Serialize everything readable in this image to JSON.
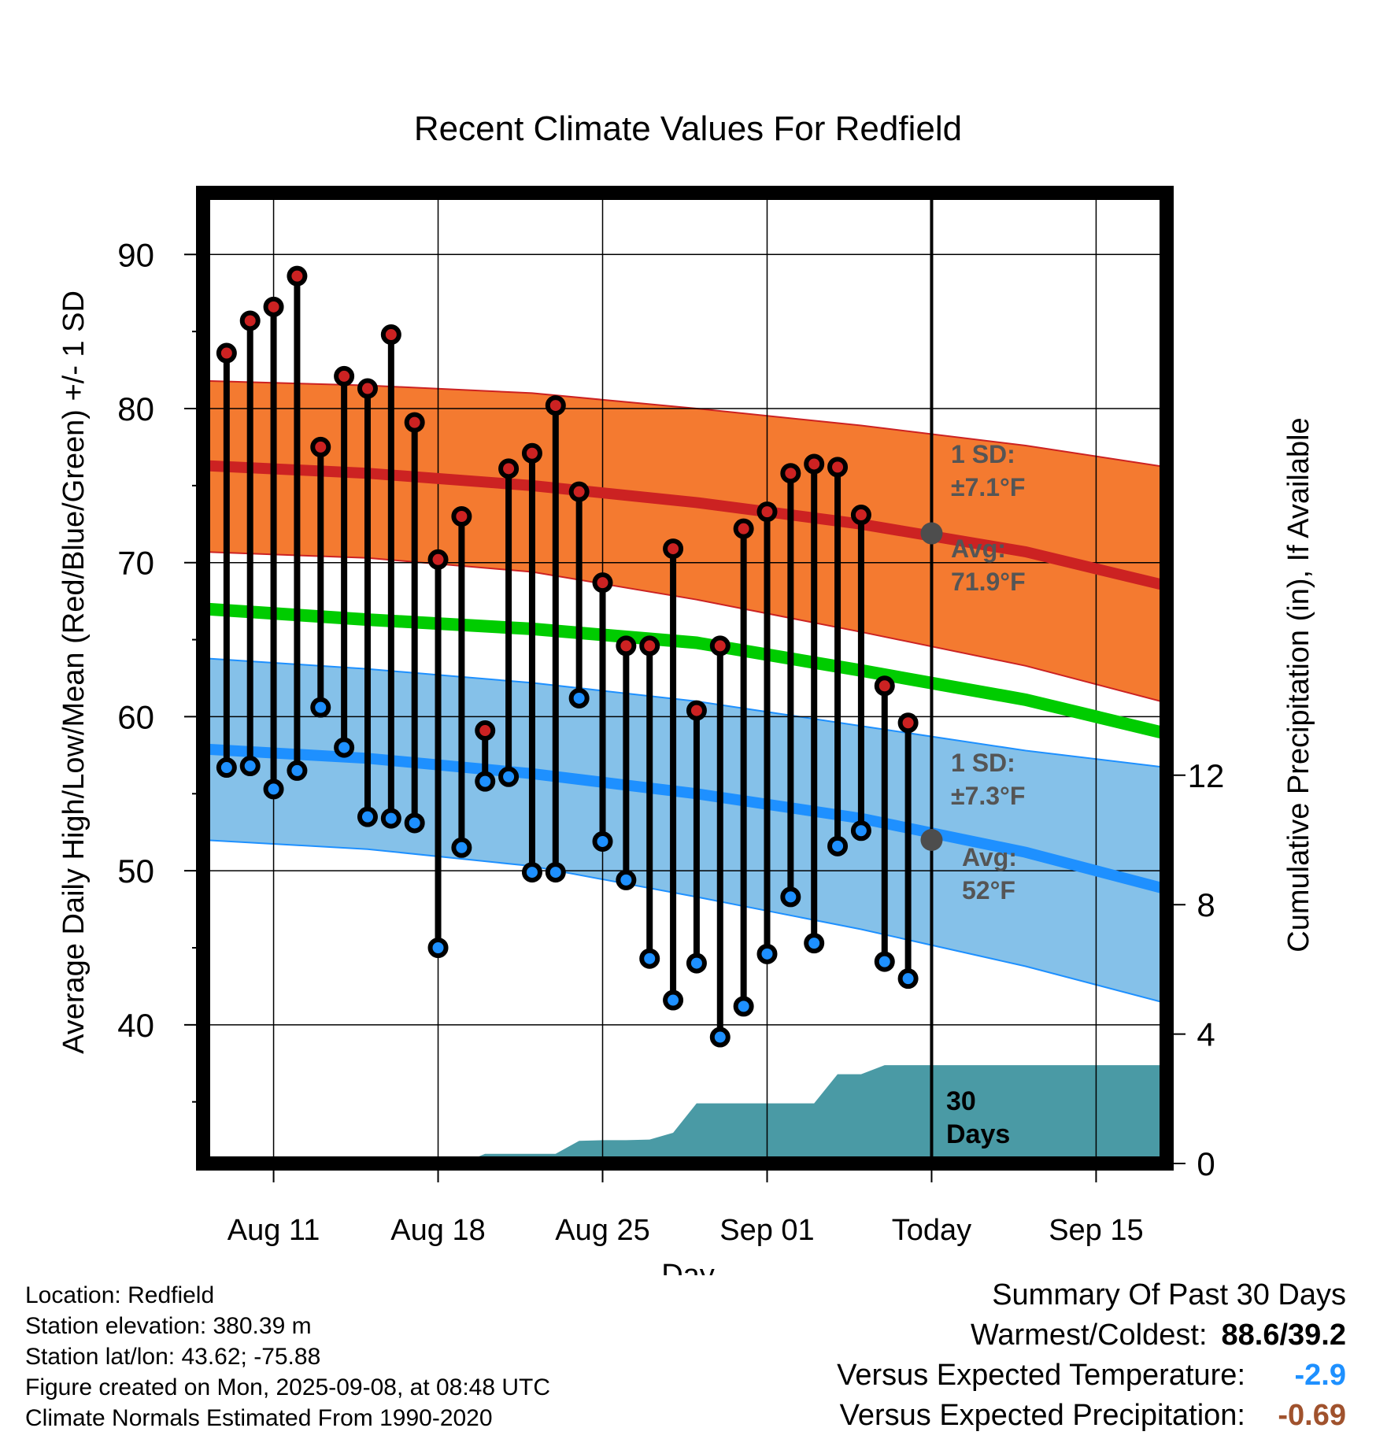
{
  "chart_data": {
    "type": "line",
    "title": "Recent Climate Values For Redfield",
    "xlabel": "Day",
    "ylabel": "Average Daily High/Low/Mean (Red/Blue/Green) +/- 1 SD",
    "y2label": "Cumulative Precipitation (in), If Available",
    "x_range": [
      "2025-08-08",
      "2025-09-18"
    ],
    "ylim": [
      31,
      94
    ],
    "y2lim": [
      0,
      30
    ],
    "yticks": [
      40,
      50,
      60,
      70,
      80,
      90
    ],
    "y2ticks": [
      0,
      4,
      8,
      12
    ],
    "grid": true,
    "xticks": [
      {
        "date": "2025-08-11",
        "label": "Aug 11"
      },
      {
        "date": "2025-08-18",
        "label": "Aug 18"
      },
      {
        "date": "2025-08-25",
        "label": "Aug 25"
      },
      {
        "date": "2025-09-01",
        "label": "Sep 01"
      },
      {
        "date": "2025-09-08",
        "label": "Today"
      },
      {
        "date": "2025-09-15",
        "label": "Sep 15"
      }
    ],
    "today": "2025-09-08",
    "window_label": [
      "30",
      "Days"
    ],
    "observations": {
      "dates": [
        "2025-08-09",
        "2025-08-10",
        "2025-08-11",
        "2025-08-12",
        "2025-08-13",
        "2025-08-14",
        "2025-08-15",
        "2025-08-16",
        "2025-08-17",
        "2025-08-18",
        "2025-08-19",
        "2025-08-20",
        "2025-08-21",
        "2025-08-22",
        "2025-08-23",
        "2025-08-24",
        "2025-08-25",
        "2025-08-26",
        "2025-08-27",
        "2025-08-28",
        "2025-08-29",
        "2025-08-30",
        "2025-08-31",
        "2025-09-01",
        "2025-09-02",
        "2025-09-03",
        "2025-09-04",
        "2025-09-05",
        "2025-09-06",
        "2025-09-07"
      ],
      "high": [
        83.6,
        85.7,
        86.6,
        88.6,
        77.5,
        82.1,
        81.3,
        84.8,
        79.1,
        70.2,
        73,
        59.1,
        76.1,
        77.1,
        80.2,
        74.6,
        68.7,
        64.6,
        64.6,
        70.9,
        60.4,
        64.6,
        72.2,
        73.3,
        75.8,
        76.4,
        76.2,
        73.1,
        62,
        59.6
      ],
      "low": [
        56.7,
        56.8,
        55.3,
        56.5,
        60.6,
        58,
        53.5,
        53.4,
        53.1,
        45,
        51.5,
        55.8,
        56.1,
        49.9,
        49.9,
        61.2,
        51.9,
        49.4,
        44.3,
        41.6,
        44,
        39.2,
        41.2,
        44.6,
        48.3,
        45.3,
        51.6,
        52.6,
        44.1,
        43
      ]
    },
    "normals": {
      "dates": [
        "2025-08-08",
        "2025-08-15",
        "2025-08-22",
        "2025-08-29",
        "2025-09-05",
        "2025-09-12",
        "2025-09-18"
      ],
      "high_mean": [
        76.3,
        75.8,
        75,
        73.9,
        72.5,
        70.7,
        68.5
      ],
      "high_upper": [
        81.8,
        81.5,
        81,
        80,
        78.9,
        77.6,
        76.2
      ],
      "high_lower": [
        70.7,
        70.3,
        69.4,
        67.6,
        65.5,
        63.3,
        60.9
      ],
      "mean": [
        67,
        66.3,
        65.7,
        64.8,
        63,
        61.1,
        58.9
      ],
      "low_mean": [
        57.9,
        57.3,
        56.3,
        55,
        53.4,
        51.2,
        48.8
      ],
      "low_upper": [
        63.8,
        63.1,
        62.2,
        61,
        59.4,
        57.8,
        56.7
      ],
      "low_lower": [
        52,
        51.4,
        50.3,
        48.3,
        46.2,
        43.8,
        41.4
      ]
    },
    "precipitation": {
      "dates": [
        "2025-08-19",
        "2025-08-20",
        "2025-08-21",
        "2025-08-22",
        "2025-08-23",
        "2025-08-24",
        "2025-08-25",
        "2025-08-26",
        "2025-08-27",
        "2025-08-28",
        "2025-08-29",
        "2025-08-30",
        "2025-08-31",
        "2025-09-01",
        "2025-09-02",
        "2025-09-03",
        "2025-09-04",
        "2025-09-05",
        "2025-09-06",
        "2025-09-07",
        "2025-09-08",
        "2025-09-18"
      ],
      "cumulative": [
        0,
        0.3,
        0.3,
        0.3,
        0.3,
        0.7,
        0.72,
        0.72,
        0.74,
        0.95,
        1.86,
        1.86,
        1.86,
        1.86,
        1.86,
        1.86,
        2.76,
        2.76,
        3.04,
        3.04,
        3.04,
        3.04
      ]
    },
    "annotations": {
      "high_sd": [
        "1 SD:",
        "±7.1°F"
      ],
      "high_avg": [
        "Avg:",
        "71.9°F"
      ],
      "low_sd": [
        "1 SD:",
        "±7.3°F"
      ],
      "low_avg": [
        "Avg:",
        "52°F"
      ],
      "today_high_avg": 71.9,
      "today_low_avg": 52
    },
    "colors": {
      "high": "#cc2222",
      "high_band": "#f47a30",
      "mean": "#00cc00",
      "low": "#1e90ff",
      "low_band": "#85c1e9",
      "precip": "#4a9aa5",
      "annotation": "#555555"
    }
  },
  "info": {
    "location": "Location: Redfield",
    "elevation": "Station elevation: 380.39 m",
    "latlon": "Station lat/lon: 43.62; -75.88",
    "created": "Figure created on Mon, 2025-09-08, at 08:48 UTC",
    "normals": "Climate Normals Estimated From 1990-2020"
  },
  "summary": {
    "title": "Summary Of Past 30 Days",
    "warmest_label": "Warmest/Coldest:",
    "warmest_value": "88.6/39.2",
    "temp_label": "Versus Expected Temperature:",
    "temp_value": "-2.9",
    "temp_color": "#1e90ff",
    "precip_label": "Versus Expected Precipitation:",
    "precip_value": "-0.69",
    "precip_color": "#a0522d"
  }
}
